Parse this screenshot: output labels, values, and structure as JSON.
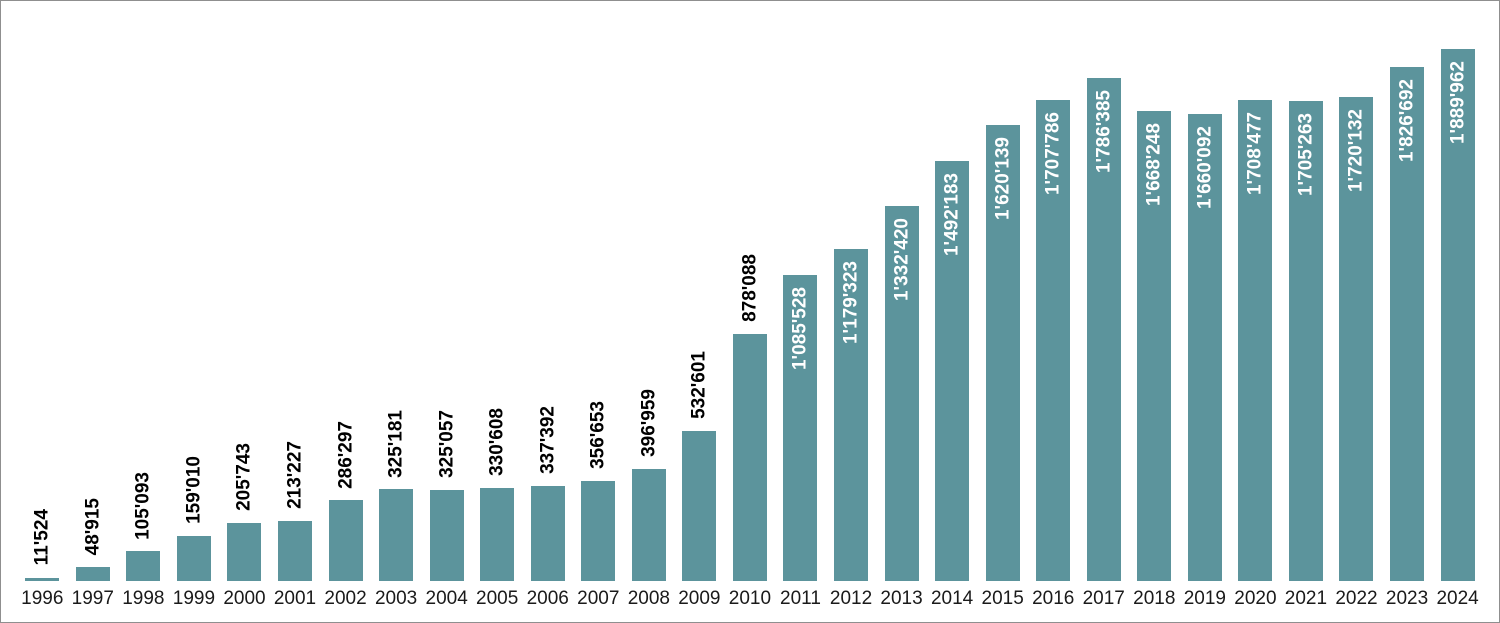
{
  "chart_data": {
    "type": "bar",
    "title": "",
    "xlabel": "",
    "ylabel": "",
    "categories": [
      "1996",
      "1997",
      "1998",
      "1999",
      "2000",
      "2001",
      "2002",
      "2003",
      "2004",
      "2005",
      "2006",
      "2007",
      "2008",
      "2009",
      "2010",
      "2011",
      "2012",
      "2013",
      "2014",
      "2015",
      "2016",
      "2017",
      "2018",
      "2019",
      "2020",
      "2021",
      "2022",
      "2023",
      "2024"
    ],
    "values": [
      11524,
      48915,
      105093,
      159010,
      205743,
      213227,
      286297,
      325181,
      325057,
      330608,
      337392,
      356653,
      396959,
      532601,
      878088,
      1085528,
      1179323,
      1332420,
      1492183,
      1620139,
      1707786,
      1786385,
      1668248,
      1660092,
      1708477,
      1705263,
      1720132,
      1826692,
      1889962
    ],
    "value_labels": [
      "11'524",
      "48'915",
      "105'093",
      "159'010",
      "205'743",
      "213'227",
      "286'297",
      "325'181",
      "325'057",
      "330'608",
      "337'392",
      "356'653",
      "396'959",
      "532'601",
      "878'088",
      "1'085'528",
      "1'179'323",
      "1'332'420",
      "1'492'183",
      "1'620'139",
      "1'707'786",
      "1'786'385",
      "1'668'248",
      "1'660'092",
      "1'708'477",
      "1'705'263",
      "1'720'132",
      "1'826'692",
      "1'889'962"
    ],
    "ylim": [
      0,
      1950000
    ],
    "grid": false,
    "legend": "none",
    "axis_lines": "none",
    "value_label_rotation_deg": 90,
    "bar_color": "#5c949c",
    "label_color_outside": "#000000",
    "label_color_inside": "#ffffff",
    "frame_color": "#8f8f8f",
    "inside_label_threshold": 1000000
  }
}
